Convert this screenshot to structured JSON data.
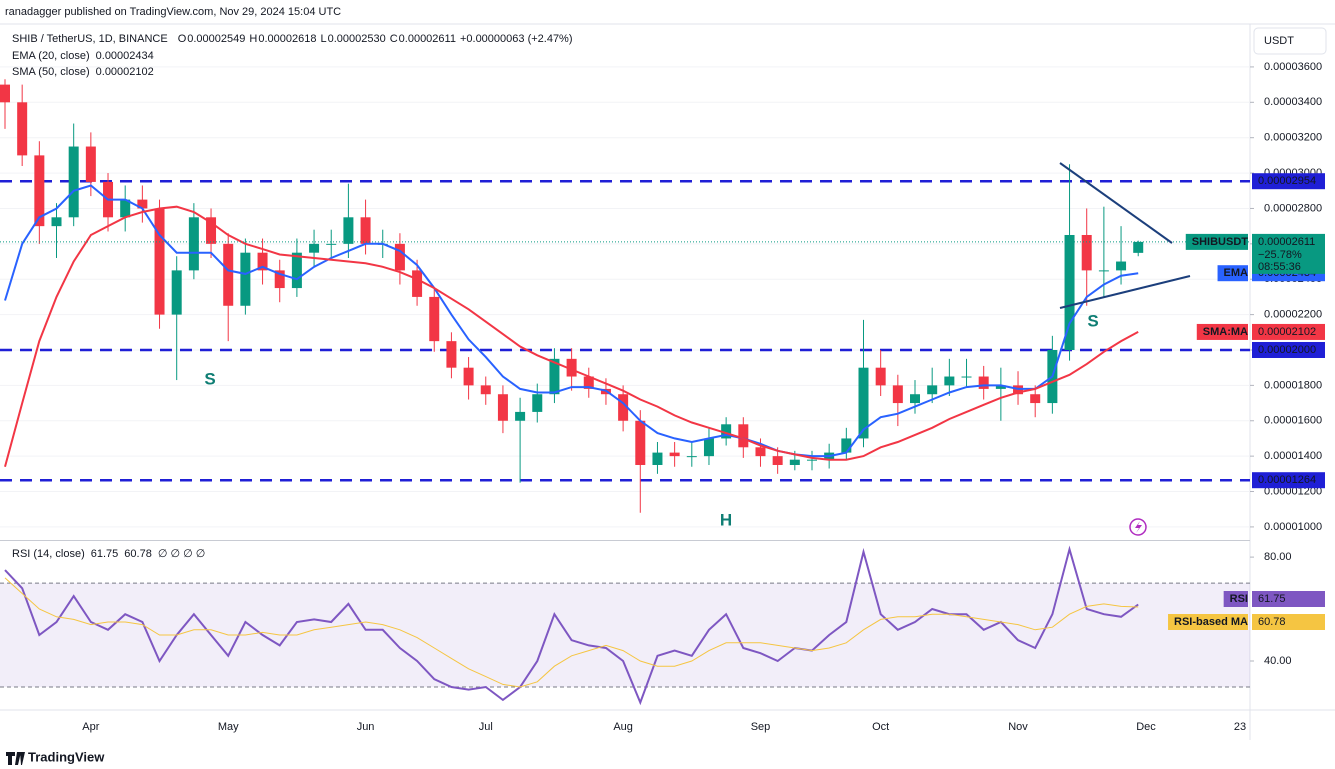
{
  "header": {
    "byline": "ranadagger published on TradingView.com, Nov 29, 2024 15:04 UTC",
    "symbol": "SHIB / TetherUS, 1D, BINANCE",
    "ohlc": [
      {
        "key": "O",
        "value": "0.00002549"
      },
      {
        "key": "H",
        "value": "0.00002618"
      },
      {
        "key": "L",
        "value": "0.00002530"
      },
      {
        "key": "C",
        "value": "0.00002611"
      }
    ],
    "change": "+0.00000063 (+2.47%)",
    "currency": "USDT",
    "brand": "TradingView"
  },
  "chart_data": [
    {
      "type": "candlestick",
      "up_color": "#089981",
      "down_color": "#f23645",
      "grid": true,
      "categories": [
        null,
        null,
        null,
        null,
        null,
        "Apr",
        null,
        null,
        null,
        null,
        null,
        null,
        null,
        "May",
        null,
        null,
        null,
        null,
        null,
        null,
        null,
        "Jun",
        null,
        null,
        null,
        null,
        null,
        null,
        "Jul",
        null,
        null,
        null,
        null,
        null,
        null,
        null,
        "Aug",
        null,
        null,
        null,
        null,
        null,
        null,
        null,
        "Sep",
        null,
        null,
        null,
        null,
        null,
        null,
        "Oct",
        null,
        null,
        null,
        null,
        null,
        null,
        null,
        "Nov",
        null,
        null,
        null,
        null,
        null,
        null,
        null
      ],
      "extra_x_labels": [
        "Dec",
        "23"
      ],
      "open": [
        3.5e-05,
        3.4e-05,
        3.1e-05,
        2.7e-05,
        2.75e-05,
        3.15e-05,
        2.95e-05,
        2.75e-05,
        2.85e-05,
        2.8e-05,
        2.2e-05,
        2.45e-05,
        2.75e-05,
        2.6e-05,
        2.25e-05,
        2.55e-05,
        2.45e-05,
        2.35e-05,
        2.55e-05,
        2.6e-05,
        2.6e-05,
        2.75e-05,
        2.6e-05,
        2.6e-05,
        2.45e-05,
        2.3e-05,
        2.05e-05,
        1.9e-05,
        1.8e-05,
        1.75e-05,
        1.6e-05,
        1.65e-05,
        1.75e-05,
        1.95e-05,
        1.85e-05,
        1.78e-05,
        1.75e-05,
        1.6e-05,
        1.35e-05,
        1.42e-05,
        1.4e-05,
        1.4e-05,
        1.5e-05,
        1.58e-05,
        1.45e-05,
        1.4e-05,
        1.35e-05,
        1.38e-05,
        1.38e-05,
        1.42e-05,
        1.5e-05,
        1.9e-05,
        1.8e-05,
        1.7e-05,
        1.75e-05,
        1.8e-05,
        1.85e-05,
        1.85e-05,
        1.78e-05,
        1.8e-05,
        1.75e-05,
        1.7e-05,
        2e-05,
        2.65e-05,
        2.45e-05,
        2.45e-05,
        2.549e-05
      ],
      "high": [
        3.53e-05,
        3.5e-05,
        3.18e-05,
        2.83e-05,
        3.28e-05,
        3.23e-05,
        3e-05,
        2.93e-05,
        2.93e-05,
        2.85e-05,
        2.53e-05,
        2.83e-05,
        2.8e-05,
        2.66e-05,
        2.63e-05,
        2.63e-05,
        2.51e-05,
        2.63e-05,
        2.68e-05,
        2.68e-05,
        2.94e-05,
        2.85e-05,
        2.68e-05,
        2.66e-05,
        2.51e-05,
        2.35e-05,
        2.1e-05,
        1.96e-05,
        1.85e-05,
        1.8e-05,
        1.73e-05,
        1.81e-05,
        2.01e-05,
        2.01e-05,
        1.9e-05,
        1.84e-05,
        1.8e-05,
        1.66e-05,
        1.48e-05,
        1.48e-05,
        1.48e-05,
        1.56e-05,
        1.62e-05,
        1.62e-05,
        1.5e-05,
        1.45e-05,
        1.43e-05,
        1.43e-05,
        1.47e-05,
        1.56e-05,
        2.17e-05,
        2e-05,
        1.86e-05,
        1.83e-05,
        1.9e-05,
        1.95e-05,
        1.95e-05,
        1.91e-05,
        1.9e-05,
        1.88e-05,
        1.8e-05,
        2.08e-05,
        3.05e-05,
        2.8e-05,
        2.81e-05,
        2.7e-05,
        2.618e-05
      ],
      "low": [
        3.25e-05,
        3.04e-05,
        2.6e-05,
        2.52e-05,
        2.7e-05,
        2.87e-05,
        2.67e-05,
        2.67e-05,
        2.72e-05,
        2.12e-05,
        1.83e-05,
        2.4e-05,
        2.52e-05,
        2.05e-05,
        2.2e-05,
        2.37e-05,
        2.27e-05,
        2.3e-05,
        2.47e-05,
        2.52e-05,
        2.52e-05,
        2.54e-05,
        2.52e-05,
        2.37e-05,
        2.25e-05,
        1.99e-05,
        1.84e-05,
        1.72e-05,
        1.69e-05,
        1.53e-05,
        1.25e-05,
        1.59e-05,
        1.7e-05,
        1.77e-05,
        1.73e-05,
        1.69e-05,
        1.54e-05,
        1.08e-05,
        1.3e-05,
        1.34e-05,
        1.34e-05,
        1.35e-05,
        1.46e-05,
        1.39e-05,
        1.34e-05,
        1.3e-05,
        1.32e-05,
        1.32e-05,
        1.33e-05,
        1.38e-05,
        1.45e-05,
        1.74e-05,
        1.57e-05,
        1.64e-05,
        1.7e-05,
        1.74e-05,
        1.79e-05,
        1.72e-05,
        1.6e-05,
        1.69e-05,
        1.62e-05,
        1.64e-05,
        1.94e-05,
        2.25e-05,
        2.3e-05,
        2.37e-05,
        2.53e-05
      ],
      "close": [
        3.4e-05,
        3.1e-05,
        2.7e-05,
        2.75e-05,
        3.15e-05,
        2.95e-05,
        2.75e-05,
        2.85e-05,
        2.8e-05,
        2.2e-05,
        2.45e-05,
        2.75e-05,
        2.6e-05,
        2.25e-05,
        2.55e-05,
        2.45e-05,
        2.35e-05,
        2.55e-05,
        2.6e-05,
        2.6e-05,
        2.75e-05,
        2.6e-05,
        2.6e-05,
        2.45e-05,
        2.3e-05,
        2.05e-05,
        1.9e-05,
        1.8e-05,
        1.75e-05,
        1.6e-05,
        1.65e-05,
        1.75e-05,
        1.95e-05,
        1.85e-05,
        1.78e-05,
        1.75e-05,
        1.6e-05,
        1.35e-05,
        1.42e-05,
        1.4e-05,
        1.4e-05,
        1.5e-05,
        1.58e-05,
        1.45e-05,
        1.4e-05,
        1.35e-05,
        1.38e-05,
        1.38e-05,
        1.42e-05,
        1.5e-05,
        1.9e-05,
        1.8e-05,
        1.7e-05,
        1.75e-05,
        1.8e-05,
        1.85e-05,
        1.85e-05,
        1.78e-05,
        1.8e-05,
        1.75e-05,
        1.7e-05,
        2e-05,
        2.65e-05,
        2.45e-05,
        2.45e-05,
        2.5e-05,
        2.611e-05
      ],
      "series": [
        {
          "name": "EMA (20, close)",
          "tag": "EMA",
          "last_label": "0.00002434",
          "color": "#2962ff",
          "values": [
            2.28e-05,
            2.6e-05,
            2.75e-05,
            2.8e-05,
            2.9e-05,
            2.93e-05,
            2.85e-05,
            2.85e-05,
            2.8e-05,
            2.65e-05,
            2.55e-05,
            2.55e-05,
            2.55e-05,
            2.45e-05,
            2.43e-05,
            2.47e-05,
            2.43e-05,
            2.4e-05,
            2.47e-05,
            2.52e-05,
            2.56e-05,
            2.6e-05,
            2.6e-05,
            2.56e-05,
            2.48e-05,
            2.35e-05,
            2.2e-05,
            2.06e-05,
            1.96e-05,
            1.85e-05,
            1.78e-05,
            1.76e-05,
            1.76e-05,
            1.79e-05,
            1.79e-05,
            1.77e-05,
            1.7e-05,
            1.6e-05,
            1.53e-05,
            1.5e-05,
            1.48e-05,
            1.5e-05,
            1.52e-05,
            1.5e-05,
            1.47e-05,
            1.43e-05,
            1.41e-05,
            1.4e-05,
            1.4e-05,
            1.42e-05,
            1.55e-05,
            1.62e-05,
            1.64e-05,
            1.68e-05,
            1.72e-05,
            1.76e-05,
            1.79e-05,
            1.8e-05,
            1.8e-05,
            1.78e-05,
            1.78e-05,
            1.85e-05,
            2.15e-05,
            2.3e-05,
            2.37e-05,
            2.42e-05,
            2.434e-05
          ]
        },
        {
          "name": "SMA (50, close)",
          "tag": "SMA:MA",
          "last_label": "0.00002102",
          "color": "#f23645",
          "values": [
            1.34e-05,
            1.7e-05,
            2.05e-05,
            2.3e-05,
            2.5e-05,
            2.65e-05,
            2.7e-05,
            2.75e-05,
            2.78e-05,
            2.8e-05,
            2.81e-05,
            2.78e-05,
            2.72e-05,
            2.65e-05,
            2.6e-05,
            2.57e-05,
            2.54e-05,
            2.53e-05,
            2.52e-05,
            2.51e-05,
            2.5e-05,
            2.49e-05,
            2.47e-05,
            2.44e-05,
            2.4e-05,
            2.35e-05,
            2.29e-05,
            2.23e-05,
            2.16e-05,
            2.09e-05,
            2.02e-05,
            1.97e-05,
            1.93e-05,
            1.89e-05,
            1.85e-05,
            1.81e-05,
            1.77e-05,
            1.72e-05,
            1.68e-05,
            1.63e-05,
            1.59e-05,
            1.56e-05,
            1.53e-05,
            1.5e-05,
            1.46e-05,
            1.43e-05,
            1.41e-05,
            1.39e-05,
            1.38e-05,
            1.38e-05,
            1.4e-05,
            1.45e-05,
            1.48e-05,
            1.52e-05,
            1.56e-05,
            1.61e-05,
            1.65e-05,
            1.69e-05,
            1.73e-05,
            1.76e-05,
            1.78e-05,
            1.82e-05,
            1.86e-05,
            1.92e-05,
            1.99e-05,
            2.05e-05,
            2.102e-05
          ]
        }
      ],
      "last": {
        "label": "SHIBUSDT",
        "price": "0.00002611",
        "change": "−25.78%",
        "countdown": "08:55:36",
        "color": "#089981"
      },
      "levels": [
        {
          "value": 2.954e-05,
          "label": "0.00002954"
        },
        {
          "value": 2e-05,
          "label": "0.00002000"
        },
        {
          "value": 1.264e-05,
          "label": "0.00001264"
        }
      ],
      "level_color": "#1f1fd6",
      "annotations": [
        "S",
        "S",
        "H"
      ],
      "ylim": [
        9.26e-06,
        3.82e-05
      ],
      "yticks": [
        {
          "value": 3.6e-05,
          "label": "0.00003600"
        },
        {
          "value": 3.4e-05,
          "label": "0.00003400"
        },
        {
          "value": 3.2e-05,
          "label": "0.00003200"
        },
        {
          "value": 3e-05,
          "label": "0.00003000"
        },
        {
          "value": 2.8e-05,
          "label": "0.00002800"
        },
        {
          "value": 2.6e-05,
          "label": "0.00002600"
        },
        {
          "value": 2.4e-05,
          "label": "0.00002400"
        },
        {
          "value": 2.2e-05,
          "label": "0.00002200"
        },
        {
          "value": 2e-05,
          "label": "0.00002000"
        },
        {
          "value": 1.8e-05,
          "label": "0.00001800"
        },
        {
          "value": 1.6e-05,
          "label": "0.00001600"
        },
        {
          "value": 1.4e-05,
          "label": "0.00001400"
        },
        {
          "value": 1.2e-05,
          "label": "0.00001200"
        },
        {
          "value": 1e-05,
          "label": "0.00001000"
        }
      ]
    },
    {
      "type": "line",
      "title": "RSI (14, close)",
      "extra": "∅ ∅ ∅ ∅",
      "series": [
        {
          "name": "RSI",
          "tag": "RSI",
          "last_label": "61.75",
          "color": "#7e57c2",
          "values": [
            75,
            68,
            50,
            55,
            65,
            55,
            52,
            58,
            55,
            40,
            50,
            58,
            50,
            42,
            55,
            50,
            46,
            55,
            56,
            55,
            62,
            52,
            52,
            45,
            40,
            33,
            30,
            29,
            30,
            25,
            30,
            40,
            58,
            48,
            46,
            45,
            40,
            24,
            42,
            44,
            42,
            52,
            58,
            45,
            43,
            40,
            45,
            44,
            50,
            55,
            82,
            58,
            52,
            55,
            60,
            58,
            58,
            52,
            55,
            48,
            45,
            58,
            83,
            60,
            58,
            57,
            61.75
          ]
        },
        {
          "name": "RSI-based MA",
          "tag": "RSI-based MA",
          "last_label": "60.78",
          "color": "#f5c542",
          "values": [
            72,
            66,
            60,
            57,
            56,
            54,
            55,
            55,
            54,
            50,
            50,
            52,
            52,
            50,
            50,
            51,
            50,
            50,
            52,
            53,
            54,
            55,
            54,
            52,
            49,
            45,
            41,
            37,
            34,
            31,
            30,
            32,
            38,
            42,
            44,
            46,
            44,
            40,
            38,
            38,
            40,
            44,
            47,
            47,
            47,
            46,
            45,
            44,
            45,
            47,
            52,
            56,
            57,
            57,
            58,
            58,
            57,
            56,
            55,
            54,
            52,
            53,
            58,
            61,
            62,
            61,
            60.78
          ]
        }
      ],
      "hlines": [
        70,
        30
      ],
      "ylim": [
        21.9,
        86.2
      ],
      "yticks": [
        {
          "value": 80,
          "label": "80.00"
        },
        {
          "value": 40,
          "label": "40.00"
        }
      ]
    }
  ]
}
